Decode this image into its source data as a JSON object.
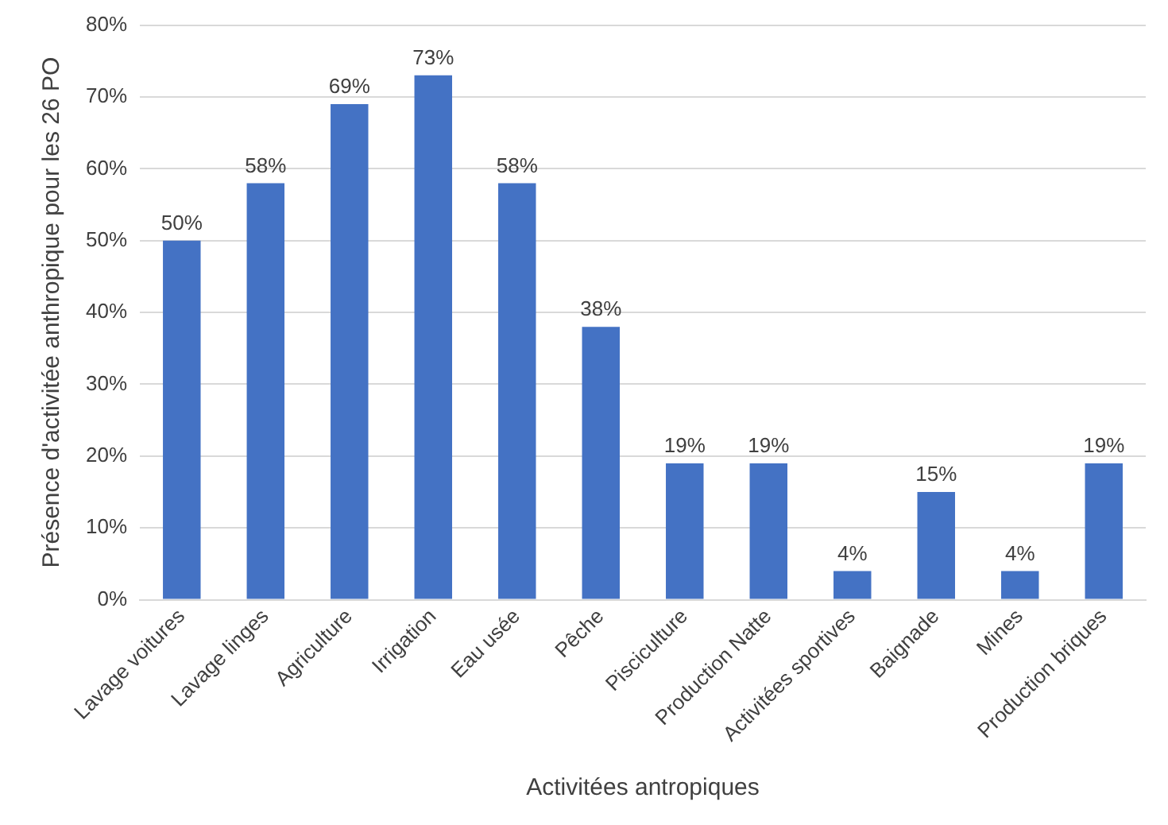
{
  "chart_data": {
    "type": "bar",
    "xlabel": "Activitées antropiques",
    "ylabel": "Présence d'activitée anthropique pour les 26 PO",
    "categories": [
      "Lavage voitures",
      "Lavage linges",
      "Agriculture",
      "Irrigation",
      "Eau usée",
      "Pêche",
      "Pisciculture",
      "Production Natte",
      "Activitées sportives",
      "Baignade",
      "Mines",
      "Production briques"
    ],
    "values": [
      50,
      58,
      69,
      73,
      58,
      38,
      19,
      19,
      4,
      15,
      4,
      19
    ],
    "value_labels": [
      "50%",
      "58%",
      "69%",
      "73%",
      "58%",
      "38%",
      "19%",
      "19%",
      "4%",
      "15%",
      "4%",
      "19%"
    ],
    "color": "#4472c4",
    "ylim": [
      0,
      80
    ],
    "yticks": [
      {
        "value": 0,
        "label": "0%"
      },
      {
        "value": 10,
        "label": "10%"
      },
      {
        "value": 20,
        "label": "20%"
      },
      {
        "value": 30,
        "label": "30%"
      },
      {
        "value": 40,
        "label": "40%"
      },
      {
        "value": 50,
        "label": "50%"
      },
      {
        "value": 60,
        "label": "60%"
      },
      {
        "value": 70,
        "label": "70%"
      },
      {
        "value": 80,
        "label": "80%"
      }
    ],
    "grid": "y",
    "legend": false
  }
}
